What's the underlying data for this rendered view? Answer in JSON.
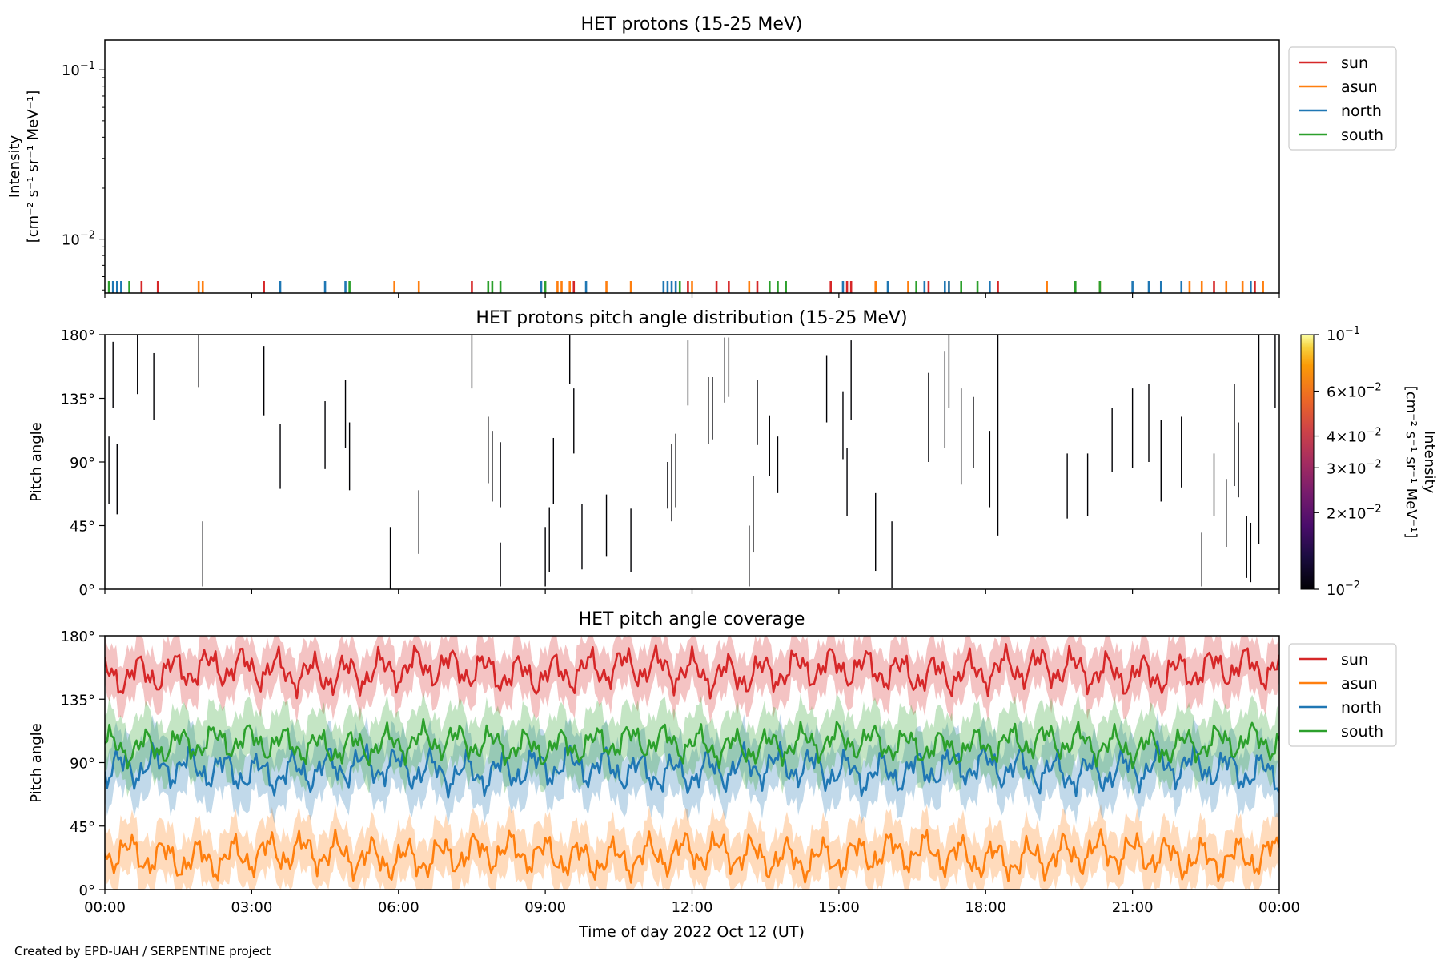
{
  "figure": {
    "footer": "Created by EPD-UAH / SERPENTINE project",
    "colors": {
      "sun": "#d62728",
      "asun": "#ff7f0e",
      "north": "#1f77b4",
      "south": "#2ca02c"
    }
  },
  "chart_data": [
    {
      "type": "line",
      "title": "HET protons (15-25 MeV)",
      "ylabel": "Intensity [cm⁻² s⁻¹ sr⁻¹ MeV⁻¹]",
      "ylabel_lines": [
        "Intensity",
        "[cm⁻² s⁻¹ sr⁻¹ MeV⁻¹]"
      ],
      "y_scale": "log",
      "ylim": [
        0.0048,
        0.15
      ],
      "y_ticks": [
        {
          "value": 0.1,
          "base": "10",
          "exp": "−1"
        },
        {
          "value": 0.01,
          "base": "10",
          "exp": "−2"
        }
      ],
      "xlim": [
        "2022-10-12T00:00",
        "2022-10-13T00:00"
      ],
      "legend": {
        "placement": "outside-right",
        "entries": [
          "sun",
          "asun",
          "north",
          "south"
        ]
      },
      "series": [
        {
          "name": "sun",
          "color": "#d62728",
          "spike_times": [
            "00:45",
            "01:05",
            "03:15",
            "07:30",
            "09:35",
            "11:55",
            "12:30",
            "12:45",
            "13:20",
            "14:50",
            "15:10",
            "15:15",
            "16:50",
            "18:15",
            "22:40",
            "23:30"
          ]
        },
        {
          "name": "asun",
          "color": "#ff7f0e",
          "spike_times": [
            "01:55",
            "02:00",
            "05:55",
            "06:25",
            "09:15",
            "09:20",
            "09:30",
            "10:15",
            "10:45",
            "12:00",
            "13:10",
            "15:45",
            "16:25",
            "17:15",
            "19:15",
            "20:20",
            "22:10",
            "22:25",
            "22:55",
            "23:15",
            "23:40"
          ]
        },
        {
          "name": "north",
          "color": "#1f77b4",
          "spike_times": [
            "00:10",
            "00:15",
            "00:20",
            "03:35",
            "04:30",
            "04:55",
            "08:55",
            "09:50",
            "11:25",
            "11:30",
            "11:35",
            "11:40",
            "15:05",
            "16:00",
            "16:45",
            "17:10",
            "17:15",
            "18:05",
            "21:00",
            "21:20",
            "21:35",
            "22:00",
            "23:25"
          ]
        },
        {
          "name": "south",
          "color": "#2ca02c",
          "spike_times": [
            "00:05",
            "00:30",
            "05:00",
            "07:50",
            "07:55",
            "08:05",
            "09:00",
            "11:45",
            "13:35",
            "13:45",
            "13:55",
            "16:35",
            "17:30",
            "17:50",
            "19:50",
            "20:20"
          ]
        }
      ]
    },
    {
      "type": "heatmap",
      "title": "HET protons pitch angle distribution (15-25 MeV)",
      "ylabel": "Pitch angle",
      "ylim": [
        0,
        180
      ],
      "y_ticks": [
        "0°",
        "45°",
        "90°",
        "135°",
        "180°"
      ],
      "xlim": [
        "2022-10-12T00:00",
        "2022-10-13T00:00"
      ],
      "colorbar": {
        "label": "Intensity [cm⁻² s⁻¹ sr⁻¹ MeV⁻¹]",
        "label_lines": [
          "Intensity",
          "[cm⁻² s⁻¹ sr⁻¹ MeV⁻¹]"
        ],
        "scale": "log",
        "range": [
          0.01,
          0.1
        ],
        "colormap": "inferno",
        "ticks": [
          {
            "value": 0.1,
            "mant": "",
            "exp": "−1"
          },
          {
            "value": 0.06,
            "mant": "6",
            "exp": "−2"
          },
          {
            "value": 0.04,
            "mant": "4",
            "exp": "−2"
          },
          {
            "value": 0.03,
            "mant": "3",
            "exp": "−2"
          },
          {
            "value": 0.02,
            "mant": "2",
            "exp": "−2"
          },
          {
            "value": 0.01,
            "mant": "",
            "exp": "−2"
          }
        ]
      },
      "segments": [
        {
          "t": "00:05",
          "lo": 60,
          "hi": 108
        },
        {
          "t": "00:10",
          "lo": 128,
          "hi": 175
        },
        {
          "t": "00:15",
          "lo": 53,
          "hi": 103
        },
        {
          "t": "00:40",
          "lo": 138,
          "hi": 180
        },
        {
          "t": "01:00",
          "lo": 120,
          "hi": 167
        },
        {
          "t": "01:55",
          "lo": 143,
          "hi": 180
        },
        {
          "t": "02:00",
          "lo": 2,
          "hi": 48
        },
        {
          "t": "03:15",
          "lo": 123,
          "hi": 172
        },
        {
          "t": "03:35",
          "lo": 71,
          "hi": 117
        },
        {
          "t": "04:30",
          "lo": 85,
          "hi": 133
        },
        {
          "t": "04:55",
          "lo": 100,
          "hi": 148
        },
        {
          "t": "05:00",
          "lo": 70,
          "hi": 118
        },
        {
          "t": "05:50",
          "lo": 0,
          "hi": 44
        },
        {
          "t": "06:25",
          "lo": 25,
          "hi": 70
        },
        {
          "t": "07:30",
          "lo": 142,
          "hi": 180
        },
        {
          "t": "07:50",
          "lo": 75,
          "hi": 122
        },
        {
          "t": "07:55",
          "lo": 62,
          "hi": 112
        },
        {
          "t": "08:05",
          "lo": 58,
          "hi": 104
        },
        {
          "t": "08:05",
          "lo": 2,
          "hi": 33
        },
        {
          "t": "09:00",
          "lo": 2,
          "hi": 44
        },
        {
          "t": "09:05",
          "lo": 12,
          "hi": 58
        },
        {
          "t": "09:10",
          "lo": 60,
          "hi": 107
        },
        {
          "t": "09:30",
          "lo": 145,
          "hi": 180
        },
        {
          "t": "09:35",
          "lo": 96,
          "hi": 142
        },
        {
          "t": "09:45",
          "lo": 14,
          "hi": 60
        },
        {
          "t": "10:15",
          "lo": 23,
          "hi": 67
        },
        {
          "t": "10:45",
          "lo": 12,
          "hi": 57
        },
        {
          "t": "11:30",
          "lo": 57,
          "hi": 90
        },
        {
          "t": "11:35",
          "lo": 48,
          "hi": 103
        },
        {
          "t": "11:40",
          "lo": 58,
          "hi": 110
        },
        {
          "t": "11:55",
          "lo": 130,
          "hi": 176
        },
        {
          "t": "12:20",
          "lo": 103,
          "hi": 150
        },
        {
          "t": "12:25",
          "lo": 106,
          "hi": 150
        },
        {
          "t": "12:40",
          "lo": 132,
          "hi": 178
        },
        {
          "t": "12:45",
          "lo": 136,
          "hi": 178
        },
        {
          "t": "13:10",
          "lo": 2,
          "hi": 45
        },
        {
          "t": "13:15",
          "lo": 26,
          "hi": 80
        },
        {
          "t": "13:20",
          "lo": 102,
          "hi": 148
        },
        {
          "t": "13:35",
          "lo": 80,
          "hi": 123
        },
        {
          "t": "13:45",
          "lo": 68,
          "hi": 108
        },
        {
          "t": "14:45",
          "lo": 118,
          "hi": 165
        },
        {
          "t": "15:05",
          "lo": 92,
          "hi": 140
        },
        {
          "t": "15:10",
          "lo": 52,
          "hi": 100
        },
        {
          "t": "15:15",
          "lo": 120,
          "hi": 176
        },
        {
          "t": "15:45",
          "lo": 13,
          "hi": 68
        },
        {
          "t": "16:05",
          "lo": 1,
          "hi": 48
        },
        {
          "t": "16:50",
          "lo": 90,
          "hi": 153
        },
        {
          "t": "17:10",
          "lo": 100,
          "hi": 168
        },
        {
          "t": "17:15",
          "lo": 128,
          "hi": 180
        },
        {
          "t": "17:30",
          "lo": 74,
          "hi": 142
        },
        {
          "t": "17:45",
          "lo": 86,
          "hi": 136
        },
        {
          "t": "18:05",
          "lo": 58,
          "hi": 112
        },
        {
          "t": "18:15",
          "lo": 38,
          "hi": 180
        },
        {
          "t": "19:40",
          "lo": 50,
          "hi": 96
        },
        {
          "t": "20:05",
          "lo": 52,
          "hi": 96
        },
        {
          "t": "20:35",
          "lo": 83,
          "hi": 128
        },
        {
          "t": "21:00",
          "lo": 86,
          "hi": 142
        },
        {
          "t": "21:20",
          "lo": 90,
          "hi": 145
        },
        {
          "t": "21:35",
          "lo": 62,
          "hi": 120
        },
        {
          "t": "22:00",
          "lo": 72,
          "hi": 122
        },
        {
          "t": "22:25",
          "lo": 2,
          "hi": 40
        },
        {
          "t": "22:40",
          "lo": 52,
          "hi": 96
        },
        {
          "t": "22:55",
          "lo": 30,
          "hi": 78
        },
        {
          "t": "23:05",
          "lo": 73,
          "hi": 145
        },
        {
          "t": "23:10",
          "lo": 65,
          "hi": 118
        },
        {
          "t": "23:20",
          "lo": 8,
          "hi": 52
        },
        {
          "t": "23:25",
          "lo": 5,
          "hi": 47
        },
        {
          "t": "23:35",
          "lo": 32,
          "hi": 180
        },
        {
          "t": "23:55",
          "lo": 128,
          "hi": 180
        }
      ]
    },
    {
      "type": "line",
      "title": "HET pitch angle coverage",
      "ylabel": "Pitch angle",
      "xlabel": "Time of day 2022 Oct 12 (UT)",
      "ylim": [
        0,
        180
      ],
      "y_ticks": [
        "0°",
        "45°",
        "90°",
        "135°",
        "180°"
      ],
      "x_ticks": [
        "00:00",
        "03:00",
        "06:00",
        "09:00",
        "12:00",
        "15:00",
        "18:00",
        "21:00",
        "00:00"
      ],
      "xlim": [
        "2022-10-12T00:00",
        "2022-10-13T00:00"
      ],
      "legend": {
        "placement": "outside-right",
        "entries": [
          "sun",
          "asun",
          "north",
          "south"
        ]
      },
      "series": [
        {
          "name": "sun",
          "color": "#d62728",
          "mean_angle": 155,
          "amplitude": 16,
          "band_halfwidth": 18
        },
        {
          "name": "asun",
          "color": "#ff7f0e",
          "mean_angle": 24,
          "amplitude": 16,
          "band_halfwidth": 18
        },
        {
          "name": "north",
          "color": "#1f77b4",
          "mean_angle": 85,
          "amplitude": 16,
          "band_halfwidth": 20
        },
        {
          "name": "south",
          "color": "#2ca02c",
          "mean_angle": 103,
          "amplitude": 14,
          "band_halfwidth": 20
        }
      ]
    }
  ]
}
